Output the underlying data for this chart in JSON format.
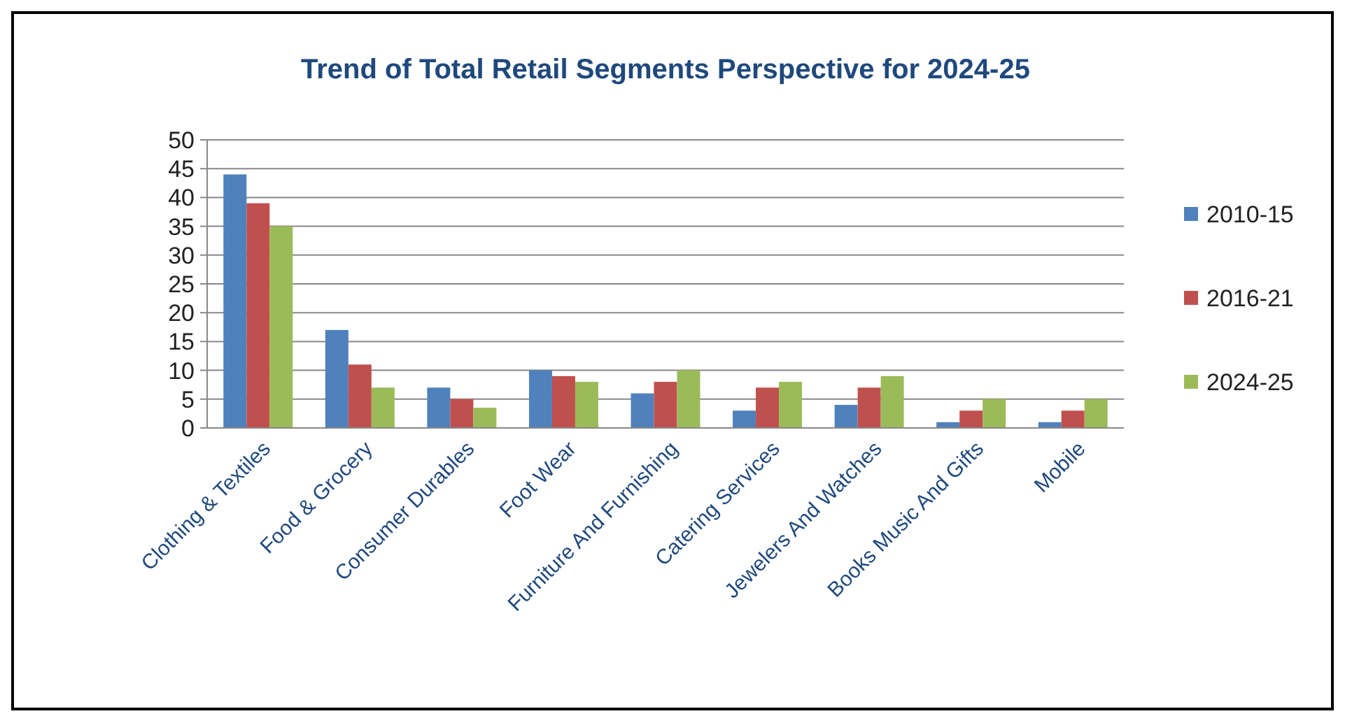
{
  "chart_data": {
    "type": "bar",
    "title": "Trend of Total Retail Segments Perspective for 2024-25",
    "categories": [
      "Clothing & Textiles",
      "Food & Grocery",
      "Consumer Durables",
      "Foot Wear",
      "Furniture And Furnishing",
      "Catering Services",
      "Jewelers And Watches",
      "Books Music And Gifts",
      "Mobile"
    ],
    "series": [
      {
        "name": "2010-15",
        "color": "#4f81bd",
        "values": [
          44,
          17,
          7,
          10,
          6,
          3,
          4,
          1,
          1
        ]
      },
      {
        "name": "2016-21",
        "color": "#c0504d",
        "values": [
          39,
          11,
          5,
          9,
          8,
          7,
          7,
          3,
          3
        ]
      },
      {
        "name": "2024-25",
        "color": "#9bbb59",
        "values": [
          35,
          7,
          3.5,
          8,
          10,
          8,
          9,
          5,
          5
        ]
      }
    ],
    "ylim": [
      0,
      50
    ],
    "yticks": [
      0,
      5,
      10,
      15,
      20,
      25,
      30,
      35,
      40,
      45,
      50
    ],
    "grid": "y",
    "legend": "right"
  }
}
